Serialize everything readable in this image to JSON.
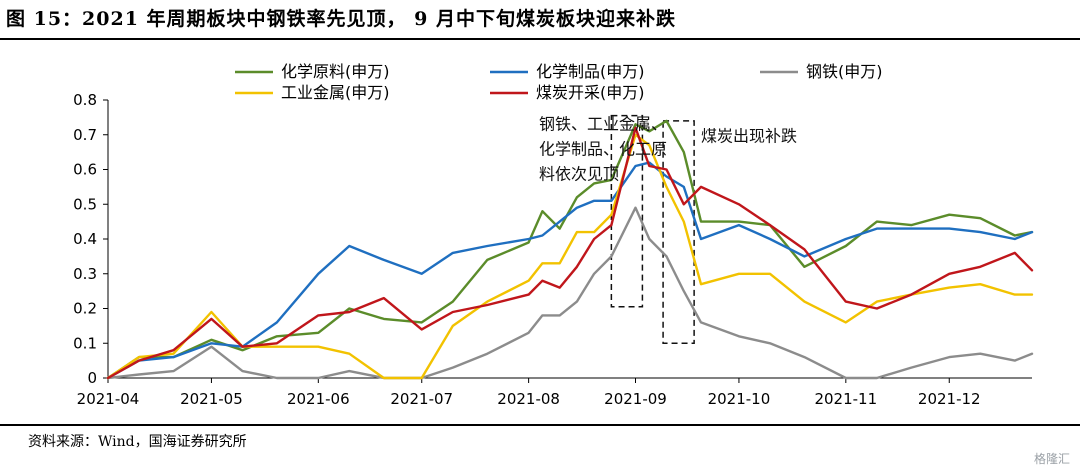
{
  "title": "图 15：2021 年周期板块中钢铁率先见顶，  9 月中下旬煤炭板块迎来补跌",
  "source": "资料来源：Wind，国海证券研究所",
  "watermark": "格隆汇",
  "colors": {
    "chem_raw": "#5b8c2a",
    "chem_prod": "#1f6fc0",
    "steel": "#8c8c8c",
    "metal": "#f2c200",
    "coal": "#c0161b"
  },
  "chart_data": {
    "type": "line",
    "xlabel": "",
    "ylabel": "",
    "ylim": [
      0,
      0.8
    ],
    "yticks": [
      "0",
      "0.1",
      "0.2",
      "0.3",
      "0.4",
      "0.5",
      "0.6",
      "0.7",
      "0.8"
    ],
    "xlim": [
      "2021-04-01",
      "2021-12-25"
    ],
    "xticks": [
      "2021-04",
      "2021-05",
      "2021-06",
      "2021-07",
      "2021-08",
      "2021-09",
      "2021-10",
      "2021-11",
      "2021-12"
    ],
    "grid": false,
    "legend": "top",
    "series": [
      {
        "name": "化学原料(申万)",
        "color": "#5b8c2a",
        "x": [
          "2021-04-01",
          "2021-04-10",
          "2021-04-20",
          "2021-05-01",
          "2021-05-10",
          "2021-05-20",
          "2021-06-01",
          "2021-06-10",
          "2021-06-20",
          "2021-07-01",
          "2021-07-10",
          "2021-07-20",
          "2021-08-01",
          "2021-08-05",
          "2021-08-10",
          "2021-08-15",
          "2021-08-20",
          "2021-08-25",
          "2021-09-01",
          "2021-09-05",
          "2021-09-10",
          "2021-09-15",
          "2021-09-20",
          "2021-10-01",
          "2021-10-10",
          "2021-10-20",
          "2021-11-01",
          "2021-11-10",
          "2021-11-20",
          "2021-12-01",
          "2021-12-10",
          "2021-12-20",
          "2021-12-25"
        ],
        "y": [
          0,
          0.06,
          0.06,
          0.11,
          0.08,
          0.12,
          0.13,
          0.2,
          0.17,
          0.16,
          0.22,
          0.34,
          0.39,
          0.48,
          0.43,
          0.52,
          0.56,
          0.57,
          0.73,
          0.71,
          0.74,
          0.65,
          0.45,
          0.45,
          0.44,
          0.32,
          0.38,
          0.45,
          0.44,
          0.47,
          0.46,
          0.41,
          0.42
        ]
      },
      {
        "name": "化学制品(申万)",
        "color": "#1f6fc0",
        "x": [
          "2021-04-01",
          "2021-04-10",
          "2021-04-20",
          "2021-05-01",
          "2021-05-10",
          "2021-05-20",
          "2021-06-01",
          "2021-06-10",
          "2021-06-20",
          "2021-07-01",
          "2021-07-10",
          "2021-07-20",
          "2021-08-01",
          "2021-08-05",
          "2021-08-10",
          "2021-08-15",
          "2021-08-20",
          "2021-08-25",
          "2021-09-01",
          "2021-09-05",
          "2021-09-10",
          "2021-09-15",
          "2021-09-20",
          "2021-10-01",
          "2021-10-10",
          "2021-10-20",
          "2021-11-01",
          "2021-11-10",
          "2021-11-20",
          "2021-12-01",
          "2021-12-10",
          "2021-12-20",
          "2021-12-25"
        ],
        "y": [
          0,
          0.05,
          0.06,
          0.1,
          0.09,
          0.16,
          0.3,
          0.38,
          0.34,
          0.3,
          0.36,
          0.38,
          0.4,
          0.41,
          0.45,
          0.49,
          0.51,
          0.51,
          0.61,
          0.62,
          0.58,
          0.55,
          0.4,
          0.44,
          0.4,
          0.35,
          0.4,
          0.43,
          0.43,
          0.43,
          0.42,
          0.4,
          0.42
        ]
      },
      {
        "name": "钢铁(申万)",
        "color": "#8c8c8c",
        "x": [
          "2021-04-01",
          "2021-04-10",
          "2021-04-20",
          "2021-05-01",
          "2021-05-10",
          "2021-05-20",
          "2021-06-01",
          "2021-06-10",
          "2021-06-20",
          "2021-07-01",
          "2021-07-10",
          "2021-07-20",
          "2021-08-01",
          "2021-08-05",
          "2021-08-10",
          "2021-08-15",
          "2021-08-20",
          "2021-08-25",
          "2021-09-01",
          "2021-09-05",
          "2021-09-10",
          "2021-09-15",
          "2021-09-20",
          "2021-10-01",
          "2021-10-10",
          "2021-10-20",
          "2021-11-01",
          "2021-11-10",
          "2021-11-20",
          "2021-12-01",
          "2021-12-10",
          "2021-12-20",
          "2021-12-25"
        ],
        "y": [
          0,
          0.01,
          0.02,
          0.09,
          0.02,
          0.0,
          0.0,
          0.02,
          0.0,
          0.0,
          0.03,
          0.07,
          0.13,
          0.18,
          0.18,
          0.22,
          0.3,
          0.35,
          0.49,
          0.4,
          0.35,
          0.25,
          0.16,
          0.12,
          0.1,
          0.06,
          0.0,
          0.0,
          0.03,
          0.06,
          0.07,
          0.05,
          0.07
        ]
      },
      {
        "name": "工业金属(申万)",
        "color": "#f2c200",
        "x": [
          "2021-04-01",
          "2021-04-10",
          "2021-04-20",
          "2021-05-01",
          "2021-05-10",
          "2021-05-20",
          "2021-06-01",
          "2021-06-10",
          "2021-06-20",
          "2021-07-01",
          "2021-07-10",
          "2021-07-20",
          "2021-08-01",
          "2021-08-05",
          "2021-08-10",
          "2021-08-15",
          "2021-08-20",
          "2021-08-25",
          "2021-09-01",
          "2021-09-05",
          "2021-09-10",
          "2021-09-15",
          "2021-09-20",
          "2021-10-01",
          "2021-10-10",
          "2021-10-20",
          "2021-11-01",
          "2021-11-10",
          "2021-11-20",
          "2021-12-01",
          "2021-12-10",
          "2021-12-20",
          "2021-12-25"
        ],
        "y": [
          0,
          0.06,
          0.07,
          0.19,
          0.09,
          0.09,
          0.09,
          0.07,
          0.0,
          0.0,
          0.15,
          0.22,
          0.28,
          0.33,
          0.33,
          0.42,
          0.42,
          0.47,
          0.7,
          0.67,
          0.55,
          0.45,
          0.27,
          0.3,
          0.3,
          0.22,
          0.16,
          0.22,
          0.24,
          0.26,
          0.27,
          0.24,
          0.24
        ]
      },
      {
        "name": "煤炭开采(申万)",
        "color": "#c0161b",
        "x": [
          "2021-04-01",
          "2021-04-10",
          "2021-04-20",
          "2021-05-01",
          "2021-05-10",
          "2021-05-20",
          "2021-06-01",
          "2021-06-10",
          "2021-06-20",
          "2021-07-01",
          "2021-07-10",
          "2021-07-20",
          "2021-08-01",
          "2021-08-05",
          "2021-08-10",
          "2021-08-15",
          "2021-08-20",
          "2021-08-25",
          "2021-09-01",
          "2021-09-05",
          "2021-09-10",
          "2021-09-15",
          "2021-09-20",
          "2021-10-01",
          "2021-10-10",
          "2021-10-20",
          "2021-11-01",
          "2021-11-10",
          "2021-11-20",
          "2021-12-01",
          "2021-12-10",
          "2021-12-20",
          "2021-12-25"
        ],
        "y": [
          0,
          0.05,
          0.08,
          0.17,
          0.09,
          0.1,
          0.18,
          0.19,
          0.23,
          0.14,
          0.19,
          0.21,
          0.24,
          0.28,
          0.26,
          0.32,
          0.4,
          0.44,
          0.72,
          0.61,
          0.6,
          0.5,
          0.55,
          0.5,
          0.44,
          0.37,
          0.22,
          0.2,
          0.24,
          0.3,
          0.32,
          0.36,
          0.31
        ]
      }
    ],
    "annotations": [
      {
        "lines": [
          "钢铁、工业金属、",
          "化学制品、化工原",
          "料依次见顶"
        ],
        "x": "2021-08-04",
        "y": 0.715
      },
      {
        "lines": [
          "煤炭出现补跌"
        ],
        "x": "2021-09-20",
        "y": 0.68
      }
    ],
    "highlight_boxes": [
      {
        "x0": "2021-08-25",
        "x1": "2021-09-03",
        "y0": 0.205,
        "y1": 0.755
      },
      {
        "x0": "2021-09-09",
        "x1": "2021-09-18",
        "y0": 0.1,
        "y1": 0.74
      }
    ]
  }
}
